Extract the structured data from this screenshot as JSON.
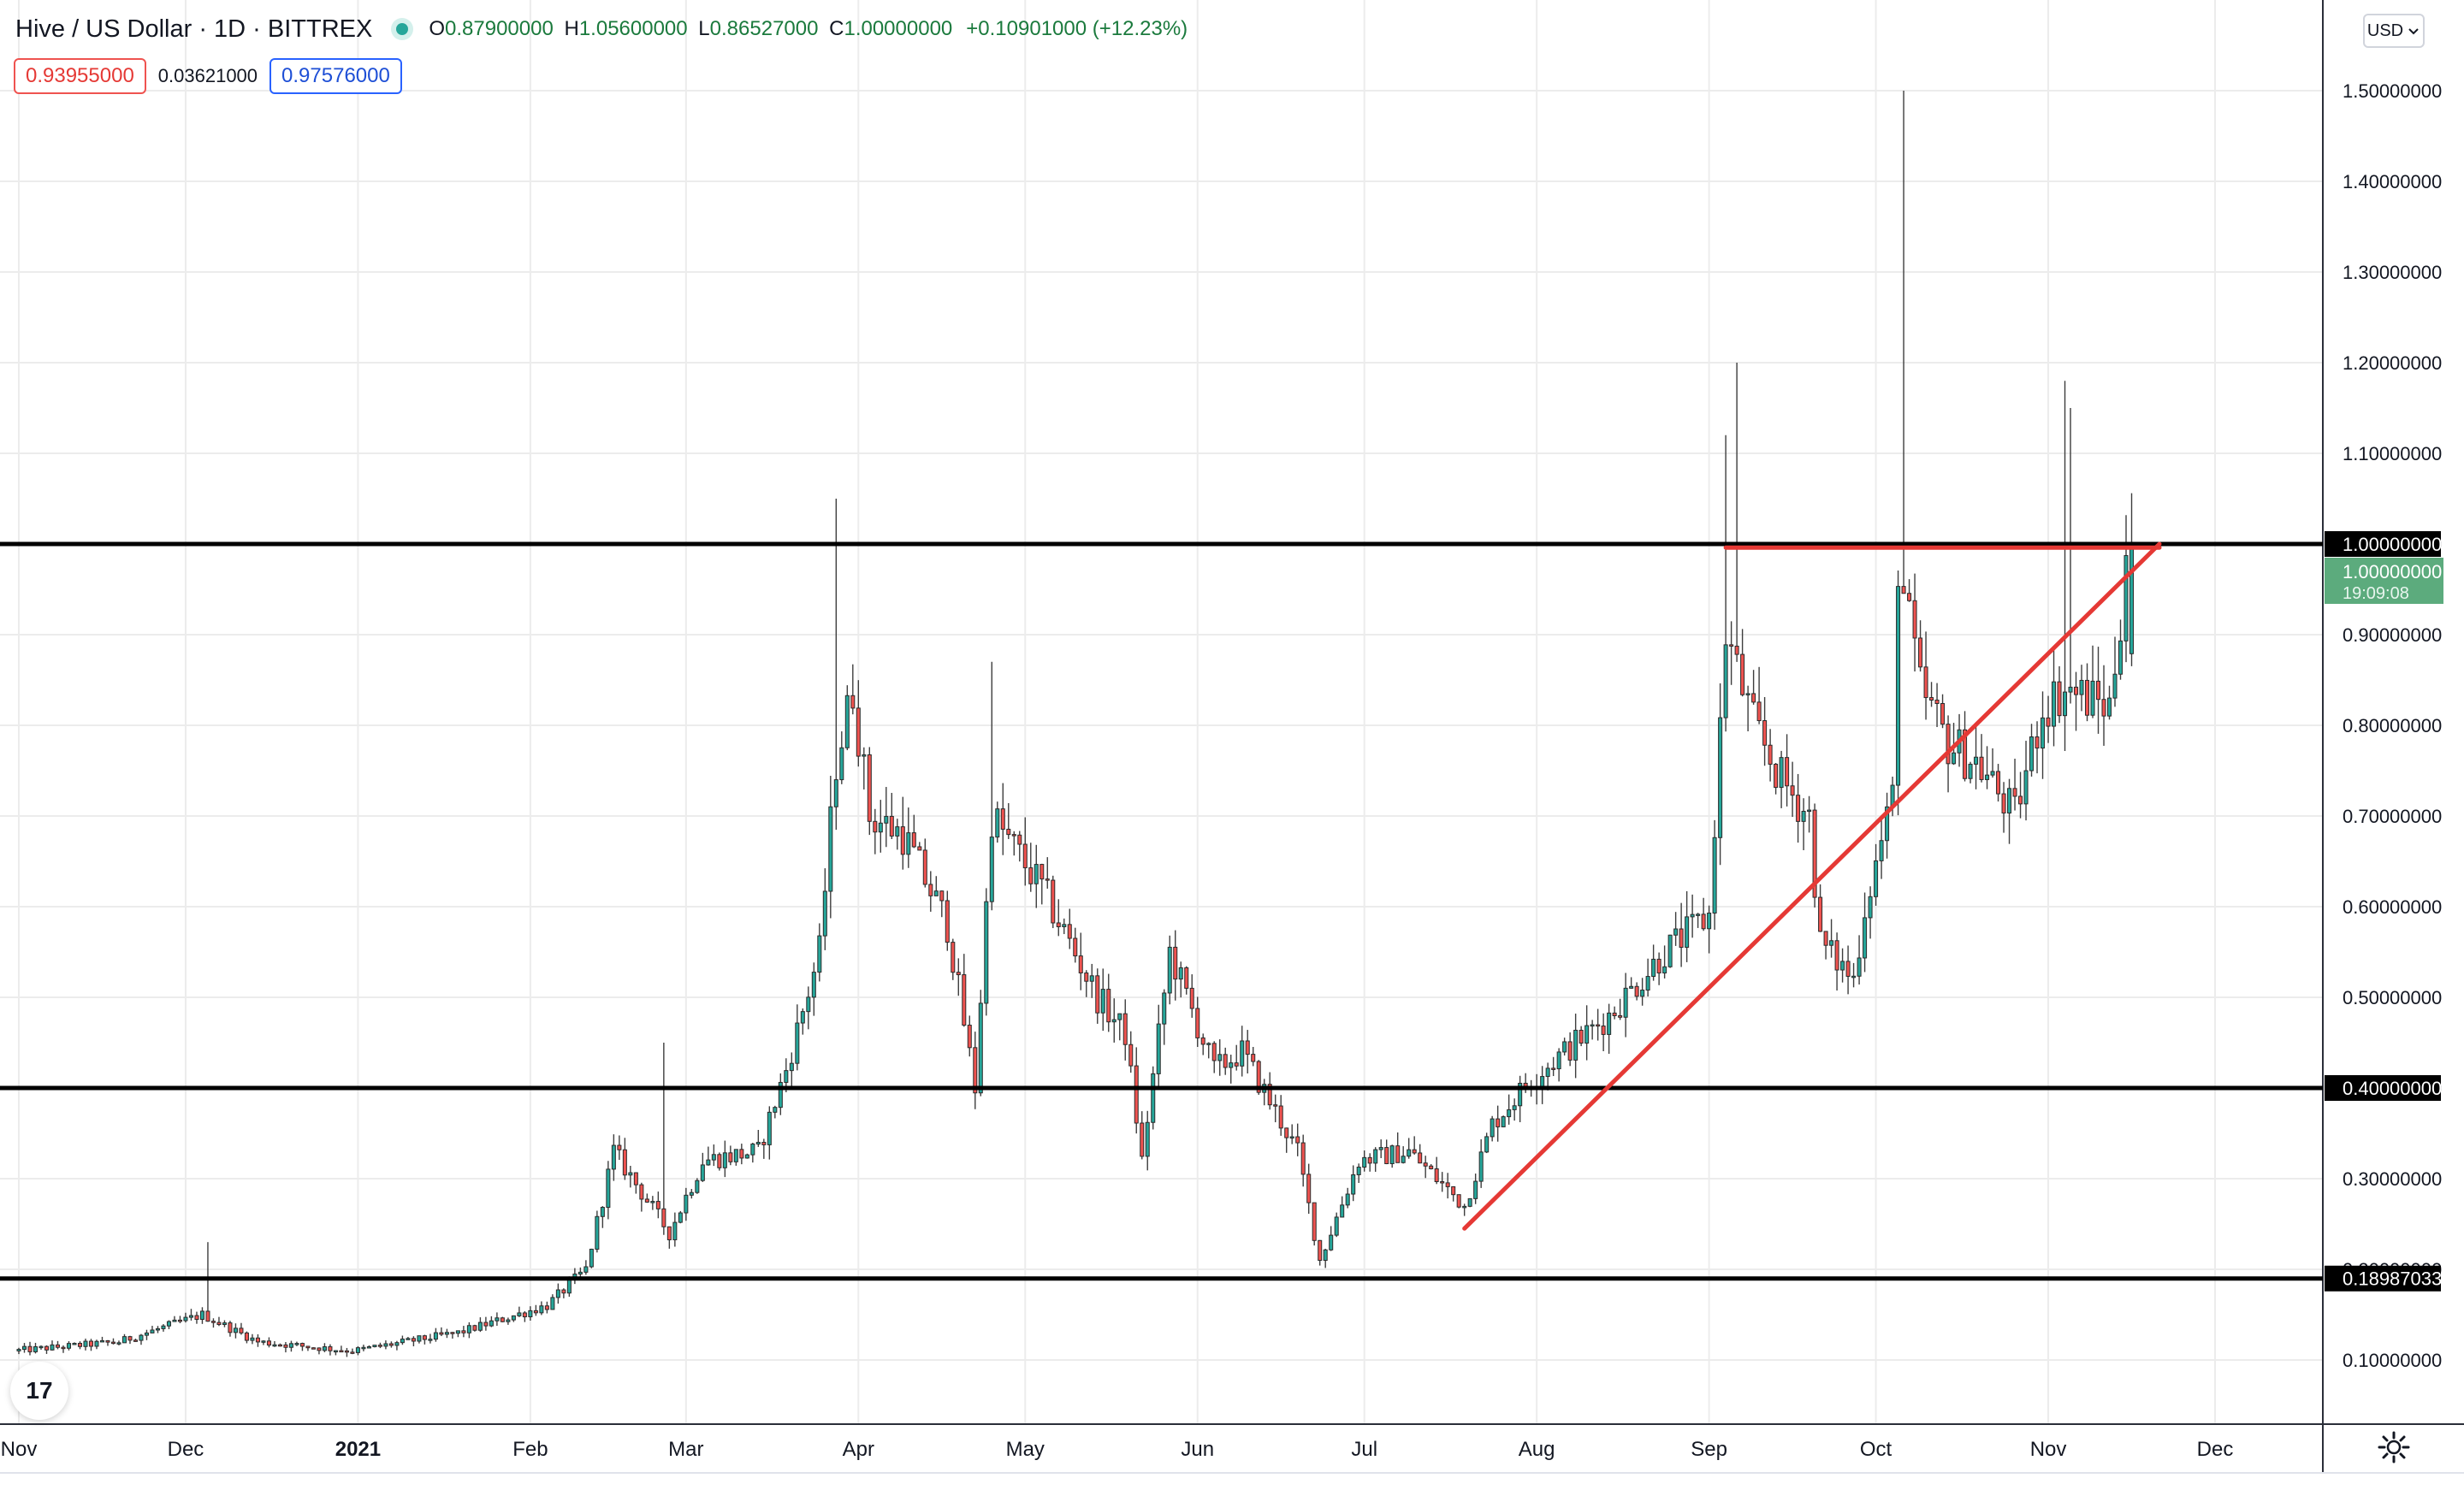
{
  "header": {
    "symbol_title": "Hive / US Dollar · 1D · BITTREX",
    "open_label": "O",
    "open": "0.87900000",
    "high_label": "H",
    "high": "1.05600000",
    "low_label": "L",
    "low": "0.86527000",
    "close_label": "C",
    "close": "1.00000000",
    "change": "+0.10901000 (+12.23%)"
  },
  "quote": {
    "bid": "0.93955000",
    "spread": "0.03621000",
    "ask": "0.97576000"
  },
  "currency_button": "USD",
  "countdown": "19:09:08",
  "logo_text": "17",
  "colors": {
    "up": "#26a69a",
    "down": "#ef5350",
    "trend": "#e53935",
    "level": "#000000",
    "last_price_tag": "#5cab7d"
  },
  "chart_data": {
    "type": "candlestick",
    "interval": "1D",
    "ylim": [
      0.02,
      1.6
    ],
    "y_ticks": [
      0.1,
      0.2,
      0.3,
      0.4,
      0.5,
      0.6,
      0.7,
      0.8,
      0.9,
      1.0,
      1.1,
      1.2,
      1.3,
      1.4,
      1.5
    ],
    "y_tick_labels": [
      "0.10000000",
      "0.20000000",
      "0.30000000",
      "0.40000000",
      "0.50000000",
      "0.60000000",
      "0.70000000",
      "0.80000000",
      "0.90000000",
      "1.00000000",
      "1.10000000",
      "1.20000000",
      "1.30000000",
      "1.40000000",
      "1.50000000"
    ],
    "x_ticks": [
      {
        "date": "2020-11-01",
        "label": "Nov"
      },
      {
        "date": "2020-12-01",
        "label": "Dec"
      },
      {
        "date": "2021-01-01",
        "label": "2021",
        "bold": true
      },
      {
        "date": "2021-02-01",
        "label": "Feb"
      },
      {
        "date": "2021-03-01",
        "label": "Mar"
      },
      {
        "date": "2021-04-01",
        "label": "Apr"
      },
      {
        "date": "2021-05-01",
        "label": "May"
      },
      {
        "date": "2021-06-01",
        "label": "Jun"
      },
      {
        "date": "2021-07-01",
        "label": "Jul"
      },
      {
        "date": "2021-08-01",
        "label": "Aug"
      },
      {
        "date": "2021-09-01",
        "label": "Sep"
      },
      {
        "date": "2021-10-01",
        "label": "Oct"
      },
      {
        "date": "2021-11-01",
        "label": "Nov"
      },
      {
        "date": "2021-12-01",
        "label": "Dec"
      }
    ],
    "levels": [
      {
        "value": 1.0,
        "label": "1.00000000"
      },
      {
        "value": 0.4,
        "label": "0.40000000"
      },
      {
        "value": 0.18987033,
        "label": "0.18987033"
      }
    ],
    "trendlines": [
      {
        "from": {
          "date": "2021-09-04",
          "value": 0.996
        },
        "to": {
          "date": "2021-11-21",
          "value": 0.996
        }
      },
      {
        "from": {
          "date": "2021-07-19",
          "value": 0.245
        },
        "to": {
          "date": "2021-11-21",
          "value": 1.0
        }
      }
    ],
    "last_price": {
      "value": 1.0,
      "label": "1.00000000"
    },
    "anchors": [
      [
        "2020-11-01",
        0.11
      ],
      [
        "2020-11-20",
        0.12
      ],
      [
        "2020-12-05",
        0.15
      ],
      [
        "2020-12-15",
        0.12
      ],
      [
        "2021-01-01",
        0.11
      ],
      [
        "2021-01-20",
        0.13
      ],
      [
        "2021-02-05",
        0.16
      ],
      [
        "2021-02-12",
        0.2
      ],
      [
        "2021-02-17",
        0.33
      ],
      [
        "2021-02-27",
        0.24
      ],
      [
        "2021-03-05",
        0.32
      ],
      [
        "2021-03-15",
        0.33
      ],
      [
        "2021-03-20",
        0.42
      ],
      [
        "2021-03-26",
        0.55
      ],
      [
        "2021-03-29",
        0.76
      ],
      [
        "2021-04-01",
        0.84
      ],
      [
        "2021-04-04",
        0.7
      ],
      [
        "2021-04-10",
        0.68
      ],
      [
        "2021-04-18",
        0.58
      ],
      [
        "2021-04-23",
        0.4
      ],
      [
        "2021-04-26",
        0.7
      ],
      [
        "2021-05-05",
        0.62
      ],
      [
        "2021-05-15",
        0.5
      ],
      [
        "2021-05-20",
        0.46
      ],
      [
        "2021-05-23",
        0.32
      ],
      [
        "2021-05-28",
        0.55
      ],
      [
        "2021-06-05",
        0.42
      ],
      [
        "2021-06-10",
        0.44
      ],
      [
        "2021-06-20",
        0.33
      ],
      [
        "2021-06-24",
        0.21
      ],
      [
        "2021-07-01",
        0.32
      ],
      [
        "2021-07-10",
        0.33
      ],
      [
        "2021-07-20",
        0.27
      ],
      [
        "2021-07-25",
        0.36
      ],
      [
        "2021-08-01",
        0.41
      ],
      [
        "2021-08-15",
        0.48
      ],
      [
        "2021-08-25",
        0.55
      ],
      [
        "2021-09-02",
        0.59
      ],
      [
        "2021-09-05",
        0.9
      ],
      [
        "2021-09-10",
        0.8
      ],
      [
        "2021-09-15",
        0.74
      ],
      [
        "2021-09-20",
        0.7
      ],
      [
        "2021-09-22",
        0.56
      ],
      [
        "2021-09-28",
        0.52
      ],
      [
        "2021-09-30",
        0.6
      ],
      [
        "2021-10-05",
        0.72
      ],
      [
        "2021-10-06",
        0.98
      ],
      [
        "2021-10-10",
        0.84
      ],
      [
        "2021-10-15",
        0.78
      ],
      [
        "2021-10-20",
        0.76
      ],
      [
        "2021-10-27",
        0.7
      ],
      [
        "2021-11-01",
        0.82
      ],
      [
        "2021-11-05",
        0.84
      ],
      [
        "2021-11-13",
        0.82
      ],
      [
        "2021-11-15",
        0.92
      ],
      [
        "2021-11-16",
        1.0
      ]
    ],
    "spikes": [
      {
        "date": "2021-02-25",
        "high": 0.45
      },
      {
        "date": "2021-03-28",
        "high": 1.05
      },
      {
        "date": "2021-04-25",
        "high": 0.87
      },
      {
        "date": "2021-09-04",
        "high": 1.12
      },
      {
        "date": "2021-09-06",
        "high": 1.2
      },
      {
        "date": "2021-10-06",
        "high": 1.5
      },
      {
        "date": "2021-11-04",
        "high": 1.18
      },
      {
        "date": "2021-11-05",
        "high": 1.15
      },
      {
        "date": "2021-11-16",
        "high": 1.056
      },
      {
        "date": "2020-12-05",
        "high": 0.23
      }
    ]
  }
}
